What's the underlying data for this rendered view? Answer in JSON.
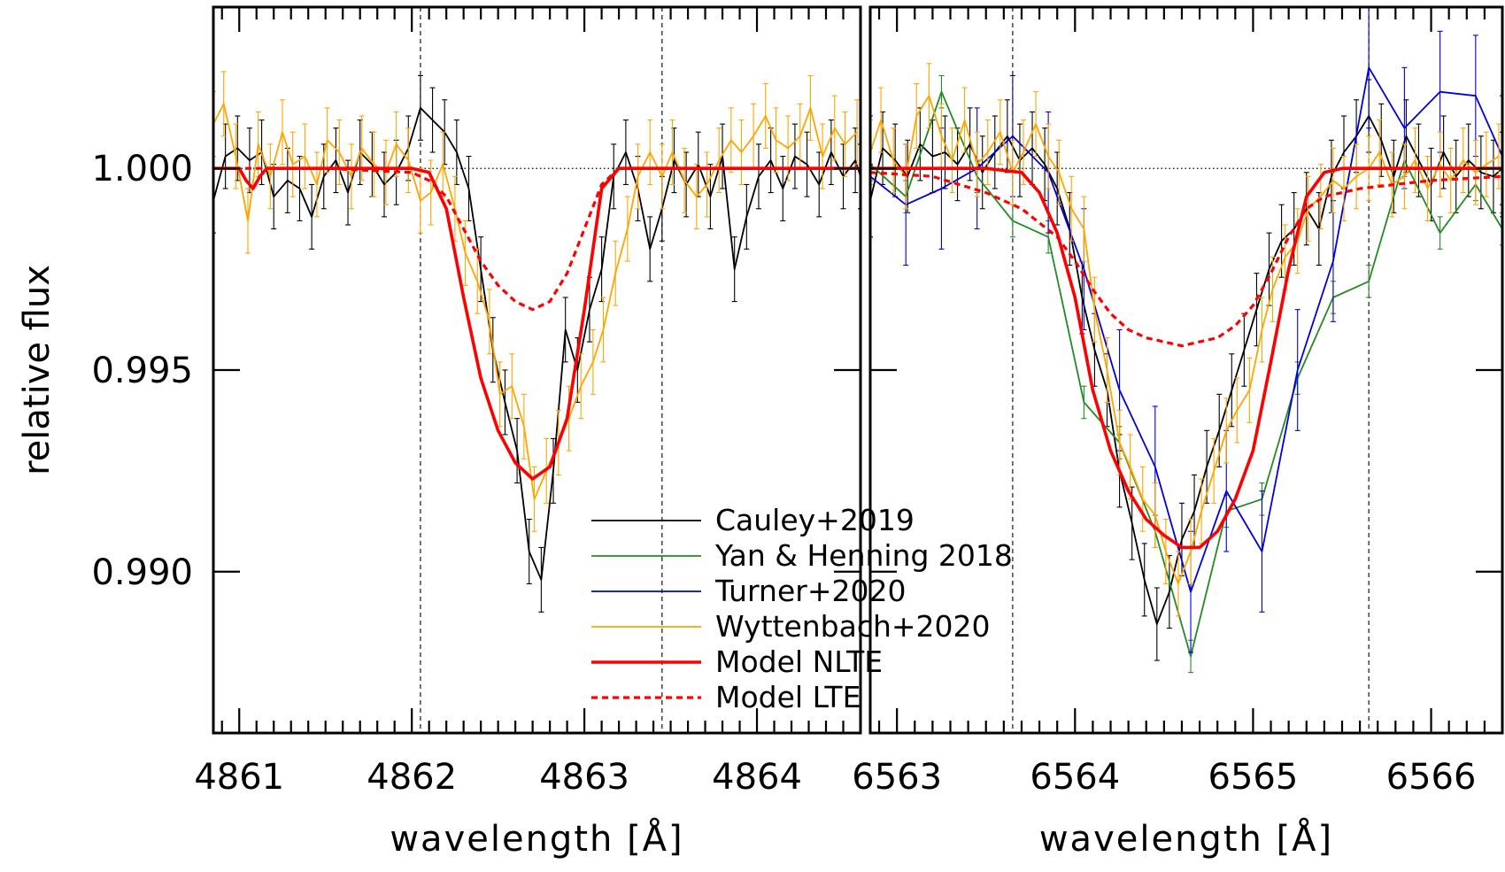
{
  "chart_data": {
    "type": "line",
    "ylabel": "relative flux",
    "ylim": [
      0.986,
      1.004
    ],
    "yticks": [
      {
        "value": 0.99,
        "label": "0.990"
      },
      {
        "value": 0.995,
        "label": "0.995"
      },
      {
        "value": 1.0,
        "label": "1.000"
      }
    ],
    "colors": {
      "Cauley+2019": "#000000",
      "Yan & Henning 2018": "#228b22",
      "Turner+2020": "#0000dd",
      "Wyttenbach+2020": "#ffa500",
      "Model NLTE": "#ff0000",
      "Model LTE": "#ff0000"
    },
    "legend": {
      "placement": "bottom-center",
      "entries": [
        {
          "label": "Cauley+2019",
          "color": "#000000",
          "style": "solid"
        },
        {
          "label": "Yan & Henning 2018",
          "color": "#228b22",
          "style": "solid"
        },
        {
          "label": "Turner+2020",
          "color": "#0000dd",
          "style": "solid"
        },
        {
          "label": "Wyttenbach+2020",
          "color": "#ffa500",
          "style": "solid"
        },
        {
          "label": "Model NLTE",
          "color": "#ff0000",
          "style": "thick"
        },
        {
          "label": "Model LTE",
          "color": "#ff0000",
          "style": "dashed"
        }
      ]
    },
    "panels": [
      {
        "xlabel": "wavelength [Å]",
        "xlim": [
          4860.85,
          4864.6
        ],
        "xticks": [
          {
            "value": 4861,
            "label": "4861"
          },
          {
            "value": 4862,
            "label": "4862"
          },
          {
            "value": 4863,
            "label": "4863"
          },
          {
            "value": 4864,
            "label": "4864"
          }
        ],
        "reference_lines": [
          4862.05,
          4863.45
        ],
        "continuum": 1.0,
        "series": [
          {
            "name": "Cauley+2019",
            "x": [
              4860.85,
              4860.92,
              4860.99,
              4861.06,
              4861.13,
              4861.2,
              4861.28,
              4861.35,
              4861.42,
              4861.49,
              4861.56,
              4861.63,
              4861.7,
              4861.77,
              4861.84,
              4861.91,
              4861.98,
              4862.05,
              4862.12,
              4862.19,
              4862.26,
              4862.33,
              4862.4,
              4862.47,
              4862.54,
              4862.61,
              4862.68,
              4862.75,
              4862.82,
              4862.89,
              4862.96,
              4863.03,
              4863.1,
              4863.17,
              4863.24,
              4863.31,
              4863.38,
              4863.45,
              4863.52,
              4863.59,
              4863.66,
              4863.73,
              4863.8,
              4863.87,
              4863.94,
              4864.01,
              4864.08,
              4864.15,
              4864.22,
              4864.29,
              4864.36,
              4864.43,
              4864.5,
              4864.57,
              4864.6
            ],
            "y": [
              0.9992,
              1.0003,
              1.0005,
              1.0002,
              1.0004,
              0.9993,
              0.9997,
              0.9995,
              0.9988,
              0.9998,
              1.0002,
              0.9994,
              1.0004,
              1.0001,
              0.9996,
              0.9999,
              1.0005,
              1.0015,
              1.0012,
              1.0009,
              1.0004,
              0.9995,
              0.9975,
              0.9955,
              0.9942,
              0.993,
              0.9905,
              0.9898,
              0.9925,
              0.996,
              0.995,
              0.9965,
              0.9975,
              0.9998,
              1.0004,
              0.9995,
              0.998,
              0.999,
              1.0002,
              0.9996,
              1.0001,
              0.9993,
              1.0003,
              0.9975,
              0.9988,
              0.9998,
              1.0002,
              0.9995,
              1.0003,
              1.0001,
              0.9996,
              1.0004,
              0.9998,
              1.0002,
              0.9998
            ],
            "err": 0.0008
          },
          {
            "name": "Wyttenbach+2020",
            "x": [
              4860.85,
              4860.91,
              4860.98,
              4861.05,
              4861.11,
              4861.18,
              4861.25,
              4861.31,
              4861.38,
              4861.45,
              4861.51,
              4861.58,
              4861.65,
              4861.71,
              4861.78,
              4861.85,
              4861.91,
              4861.98,
              4862.05,
              4862.11,
              4862.18,
              4862.25,
              4862.31,
              4862.38,
              4862.45,
              4862.51,
              4862.58,
              4862.65,
              4862.71,
              4862.78,
              4862.85,
              4862.91,
              4862.98,
              4863.05,
              4863.11,
              4863.18,
              4863.25,
              4863.31,
              4863.38,
              4863.45,
              4863.51,
              4863.58,
              4863.65,
              4863.71,
              4863.78,
              4863.85,
              4863.91,
              4863.98,
              4864.05,
              4864.11,
              4864.18,
              4864.25,
              4864.31,
              4864.38,
              4864.45,
              4864.51,
              4864.58
            ],
            "y": [
              1.0011,
              1.0016,
              1.0003,
              0.9987,
              1.0006,
              0.9998,
              1.0009,
              1.0001,
              1.0003,
              0.9996,
              1.0007,
              1.0004,
              0.9998,
              1.0005,
              1.0001,
              0.9999,
              1.0006,
              1.0002,
              0.9992,
              0.9994,
              1.0001,
              0.999,
              0.9979,
              0.9972,
              0.9962,
              0.9944,
              0.9946,
              0.9936,
              0.9918,
              0.9925,
              0.9932,
              0.9938,
              0.9946,
              0.9952,
              0.996,
              0.9974,
              0.9985,
              0.9998,
              1.0004,
              0.9998,
              1.0004,
              0.9997,
              0.9993,
              0.9996,
              1.0002,
              1.0007,
              1.0004,
              1.0008,
              1.0013,
              1.0007,
              1.0005,
              1.0008,
              1.0015,
              1.0003,
              1.001,
              1.0006,
              1.0009
            ],
            "err": 0.0008
          },
          {
            "name": "Model NLTE",
            "style": "thick",
            "x": [
              4860.85,
              4861.0,
              4861.04,
              4861.08,
              4861.12,
              4861.16,
              4861.3,
              4862.0,
              4862.1,
              4862.2,
              4862.3,
              4862.4,
              4862.5,
              4862.6,
              4862.7,
              4862.8,
              4862.9,
              4863.0,
              4863.1,
              4863.2,
              4863.3,
              4864.6
            ],
            "y": [
              1.0,
              1.0,
              0.9997,
              0.9995,
              0.9998,
              1.0,
              1.0,
              1.0,
              0.9999,
              0.999,
              0.9968,
              0.9948,
              0.9935,
              0.9927,
              0.9923,
              0.9926,
              0.9938,
              0.9965,
              0.9995,
              1.0,
              1.0,
              1.0
            ]
          },
          {
            "name": "Model LTE",
            "style": "dashed",
            "x": [
              4860.85,
              4861.5,
              4862.0,
              4862.1,
              4862.2,
              4862.3,
              4862.4,
              4862.5,
              4862.6,
              4862.7,
              4862.8,
              4862.9,
              4863.0,
              4863.1,
              4863.2,
              4863.3,
              4864.6
            ],
            "y": [
              1.0,
              1.0,
              0.9999,
              0.9997,
              0.9993,
              0.9985,
              0.9977,
              0.9971,
              0.9967,
              0.9965,
              0.9967,
              0.9974,
              0.9985,
              0.9996,
              1.0,
              1.0,
              1.0
            ]
          }
        ]
      },
      {
        "xlabel": "wavelength [Å]",
        "xlim": [
          6562.85,
          6566.4
        ],
        "xticks": [
          {
            "value": 6563,
            "label": "6563"
          },
          {
            "value": 6564,
            "label": "6564"
          },
          {
            "value": 6565,
            "label": "6565"
          },
          {
            "value": 6566,
            "label": "6566"
          }
        ],
        "reference_lines": [
          6563.65,
          6565.65
        ],
        "continuum": 1.0,
        "series": [
          {
            "name": "Cauley+2019",
            "x": [
              6562.85,
              6562.92,
              6562.99,
              6563.06,
              6563.13,
              6563.2,
              6563.27,
              6563.34,
              6563.41,
              6563.48,
              6563.55,
              6563.62,
              6563.69,
              6563.76,
              6563.83,
              6563.9,
              6563.97,
              6564.04,
              6564.11,
              6564.18,
              6564.25,
              6564.32,
              6564.39,
              6564.46,
              6564.53,
              6564.6,
              6564.67,
              6564.74,
              6564.81,
              6564.88,
              6564.95,
              6565.02,
              6565.09,
              6565.16,
              6565.23,
              6565.3,
              6565.37,
              6565.44,
              6565.51,
              6565.58,
              6565.65,
              6565.72,
              6565.79,
              6565.86,
              6565.93,
              6566.0,
              6566.07,
              6566.14,
              6566.21,
              6566.28,
              6566.35,
              6566.4
            ],
            "y": [
              0.9992,
              1.0005,
              1.0002,
              0.9998,
              1.0006,
              1.0003,
              1.0004,
              1.0001,
              1.0006,
              0.9999,
              1.0004,
              1.0008,
              1.0002,
              1.0005,
              1.0001,
              0.9995,
              0.9985,
              0.9968,
              0.9955,
              0.9945,
              0.9925,
              0.9912,
              0.9898,
              0.9887,
              0.9895,
              0.9908,
              0.9915,
              0.9926,
              0.9935,
              0.9945,
              0.9955,
              0.9965,
              0.9975,
              0.9982,
              0.9985,
              0.999,
              0.9985,
              0.9998,
              1.0004,
              1.0008,
              1.0013,
              1.0007,
              0.9998,
              1.0008,
              1.0002,
              0.9996,
              1.0004,
              0.9998,
              1.0002,
              0.9999,
              0.9998,
              1.0
            ],
            "err": 0.0009
          },
          {
            "name": "Yan & Henning 2018",
            "x": [
              6562.85,
              6563.05,
              6563.25,
              6563.45,
              6563.65,
              6563.85,
              6564.05,
              6564.25,
              6564.45,
              6564.65,
              6564.85,
              6565.05,
              6565.25,
              6565.45,
              6565.65,
              6565.85,
              6566.05,
              6566.25,
              6566.4
            ],
            "y": [
              1.0001,
              0.9993,
              1.0019,
              0.9998,
              0.9987,
              0.9983,
              0.9942,
              0.9932,
              0.991,
              0.9879,
              0.9915,
              0.9918,
              0.9948,
              0.9968,
              0.9972,
              1.0002,
              0.9984,
              0.9996,
              0.9985
            ],
            "err": 0.0004
          },
          {
            "name": "Turner+2020",
            "x": [
              6562.85,
              6563.05,
              6563.25,
              6563.45,
              6563.65,
              6563.85,
              6564.05,
              6564.25,
              6564.45,
              6564.65,
              6564.85,
              6565.05,
              6565.25,
              6565.45,
              6565.65,
              6565.85,
              6566.05,
              6566.25,
              6566.4
            ],
            "y": [
              0.9998,
              0.9991,
              0.9995,
              1.0,
              1.0008,
              0.9999,
              0.9975,
              0.9945,
              0.9926,
              0.9895,
              0.992,
              0.9905,
              0.995,
              0.9977,
              1.0025,
              1.001,
              1.0019,
              1.0018,
              1.0003
            ],
            "err": 0.0015
          },
          {
            "name": "Wyttenbach+2020",
            "x": [
              6562.85,
              6562.91,
              6562.98,
              6563.05,
              6563.11,
              6563.18,
              6563.25,
              6563.31,
              6563.38,
              6563.45,
              6563.51,
              6563.58,
              6563.65,
              6563.71,
              6563.78,
              6563.85,
              6563.91,
              6563.98,
              6564.05,
              6564.11,
              6564.18,
              6564.25,
              6564.31,
              6564.38,
              6564.45,
              6564.51,
              6564.58,
              6564.65,
              6564.71,
              6564.78,
              6564.85,
              6564.91,
              6564.98,
              6565.05,
              6565.11,
              6565.18,
              6565.25,
              6565.31,
              6565.38,
              6565.45,
              6565.51,
              6565.58,
              6565.65,
              6565.71,
              6565.78,
              6565.85,
              6565.91,
              6565.98,
              6566.05,
              6566.11,
              6566.18,
              6566.25,
              6566.31,
              6566.38
            ],
            "y": [
              1.0004,
              1.0012,
              1.0002,
              0.9998,
              1.0013,
              1.0018,
              1.0008,
              1.0002,
              1.0012,
              1.0001,
              1.0004,
              1.0009,
              0.9999,
              1.0004,
              1.0011,
              1.0003,
              0.9999,
              0.999,
              0.9985,
              0.9965,
              0.995,
              0.9932,
              0.9926,
              0.9918,
              0.9914,
              0.9905,
              0.9897,
              0.9905,
              0.9915,
              0.9925,
              0.9935,
              0.994,
              0.9945,
              0.996,
              0.997,
              0.9978,
              0.9982,
              0.999,
              0.9993,
              0.9997,
              0.9995,
              0.9998,
              1.0,
              1.0004,
              0.9996,
              0.9998,
              1.0002,
              0.9995,
              1.0001,
              0.9997,
              1.0002,
              0.9999,
              1.0001,
              1.0003
            ],
            "err": 0.0008
          },
          {
            "name": "Model NLTE",
            "style": "thick",
            "x": [
              6562.85,
              6563.5,
              6563.7,
              6563.8,
              6563.9,
              6564.0,
              6564.1,
              6564.2,
              6564.3,
              6564.4,
              6564.5,
              6564.6,
              6564.7,
              6564.8,
              6564.9,
              6565.0,
              6565.1,
              6565.2,
              6565.3,
              6565.4,
              6565.5,
              6565.7,
              6566.4
            ],
            "y": [
              1.0,
              1.0,
              0.9999,
              0.9994,
              0.9984,
              0.9968,
              0.9945,
              0.993,
              0.992,
              0.9913,
              0.9909,
              0.9906,
              0.9906,
              0.991,
              0.9918,
              0.993,
              0.9952,
              0.9975,
              0.9993,
              0.9999,
              1.0,
              1.0,
              1.0
            ]
          },
          {
            "name": "Model LTE",
            "style": "dashed",
            "x": [
              6562.85,
              6563.2,
              6563.5,
              6563.7,
              6563.9,
              6564.0,
              6564.1,
              6564.2,
              6564.3,
              6564.4,
              6564.5,
              6564.6,
              6564.7,
              6564.8,
              6564.9,
              6565.0,
              6565.1,
              6565.2,
              6565.3,
              6565.4,
              6565.6,
              6565.8,
              6566.0,
              6566.4
            ],
            "y": [
              0.9999,
              0.9998,
              0.9994,
              0.999,
              0.9983,
              0.9977,
              0.997,
              0.9964,
              0.996,
              0.9958,
              0.9957,
              0.9956,
              0.9957,
              0.9958,
              0.9961,
              0.9966,
              0.9974,
              0.9983,
              0.999,
              0.9993,
              0.9995,
              0.9996,
              0.9997,
              0.9998
            ]
          }
        ]
      }
    ]
  }
}
